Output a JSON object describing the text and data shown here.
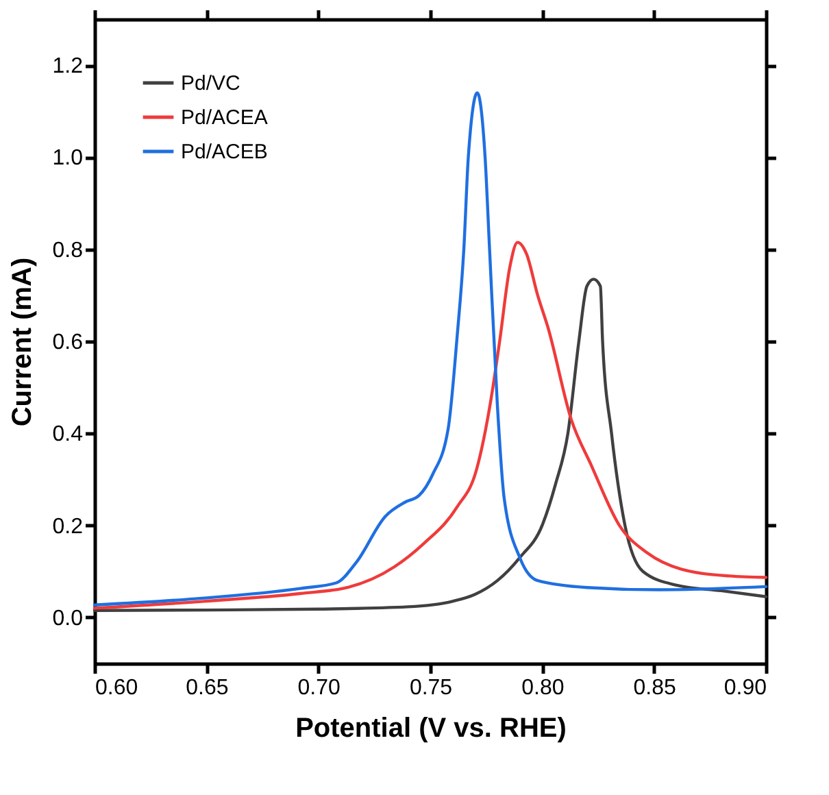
{
  "chart_data": {
    "type": "line",
    "xlabel": "Potential (V vs. RHE)",
    "ylabel": "Current (mA)",
    "xlim": [
      0.6,
      0.9
    ],
    "ylim": [
      -0.1,
      1.3
    ],
    "xticks": [
      {
        "value": 0.6,
        "label": "0.60"
      },
      {
        "value": 0.65,
        "label": "0.65"
      },
      {
        "value": 0.7,
        "label": "0.70"
      },
      {
        "value": 0.75,
        "label": "0.75"
      },
      {
        "value": 0.8,
        "label": "0.80"
      },
      {
        "value": 0.85,
        "label": "0.85"
      },
      {
        "value": 0.9,
        "label": "0.90"
      }
    ],
    "yticks": [
      {
        "value": 0,
        "label": "0.0"
      },
      {
        "value": 0.2,
        "label": "0.2"
      },
      {
        "value": 0.4,
        "label": "0.4"
      },
      {
        "value": 0.6,
        "label": "0.6"
      },
      {
        "value": 0.8,
        "label": "0.8"
      },
      {
        "value": 1.0,
        "label": "1.0"
      },
      {
        "value": 1.2,
        "label": "1.2"
      }
    ],
    "grid": false,
    "legend": "top left",
    "marker": "none",
    "line_style": "solid",
    "series": [
      {
        "name": "Pd/VC",
        "color": "#404040",
        "x": [
          0.6,
          0.65,
          0.7,
          0.74,
          0.76,
          0.77,
          0.78,
          0.79,
          0.8,
          0.806,
          0.8115,
          0.8164,
          0.82,
          0.823,
          0.826,
          0.827,
          0.831,
          0.837,
          0.845,
          0.86,
          0.88,
          0.9
        ],
        "values": [
          0.015,
          0.016,
          0.018,
          0.023,
          0.035,
          0.05,
          0.08,
          0.13,
          0.2,
          0.29,
          0.4,
          0.6,
          0.72,
          0.735,
          0.72,
          0.6,
          0.4,
          0.2,
          0.1,
          0.07,
          0.058,
          0.045
        ]
      },
      {
        "name": "Pd/ACEA",
        "color": "#ef3b3b",
        "x": [
          0.6,
          0.649,
          0.692,
          0.713,
          0.734,
          0.747,
          0.762,
          0.7706,
          0.777,
          0.781,
          0.7855,
          0.789,
          0.793,
          0.798,
          0.8026,
          0.813,
          0.822,
          0.8345,
          0.847,
          0.862,
          0.8836,
          0.9
        ],
        "values": [
          0.02,
          0.035,
          0.052,
          0.065,
          0.11,
          0.16,
          0.24,
          0.32,
          0.47,
          0.6,
          0.76,
          0.815,
          0.79,
          0.7,
          0.63,
          0.43,
          0.33,
          0.2,
          0.14,
          0.105,
          0.09,
          0.087
        ]
      },
      {
        "name": "Pd/ACEB",
        "color": "#1f6fe0",
        "x": [
          0.6,
          0.649,
          0.692,
          0.708,
          0.717,
          0.73,
          0.7386,
          0.745,
          0.751,
          0.758,
          0.762,
          0.765,
          0.767,
          0.771,
          0.7745,
          0.7765,
          0.78,
          0.783,
          0.79,
          0.798,
          0.82,
          0.852,
          0.9
        ],
        "values": [
          0.027,
          0.042,
          0.063,
          0.075,
          0.12,
          0.22,
          0.25,
          0.265,
          0.31,
          0.41,
          0.61,
          0.8,
          1.0,
          1.14,
          1.0,
          0.8,
          0.46,
          0.26,
          0.13,
          0.08,
          0.065,
          0.06,
          0.067
        ]
      }
    ]
  }
}
